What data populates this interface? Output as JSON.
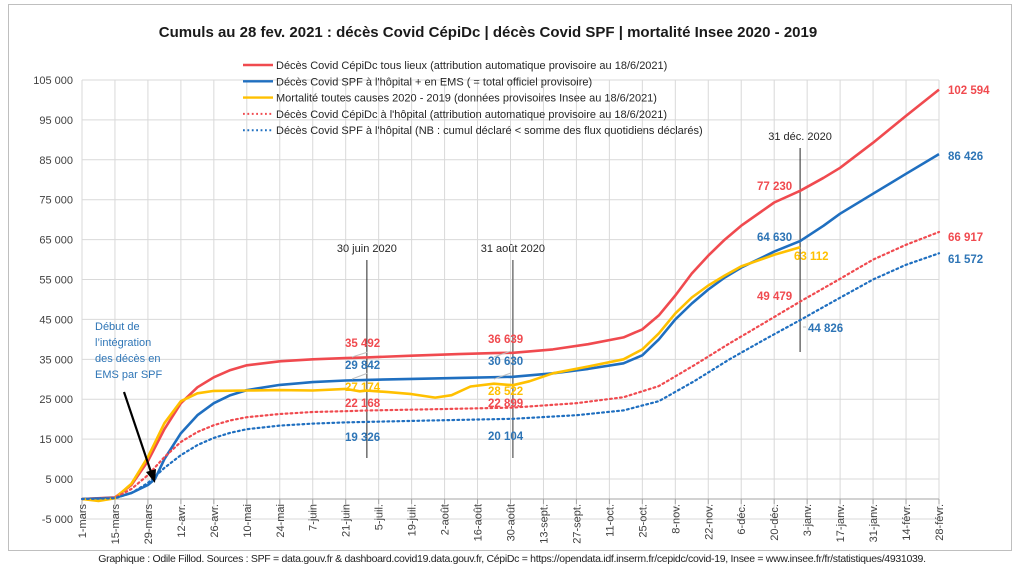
{
  "chart_data": {
    "type": "line",
    "title": "Cumuls au 28 fev. 2021 : décès Covid CépiDc | décès Covid SPF | mortalité Insee 2020 - 2019",
    "xlabel": "",
    "ylabel": "",
    "ylim": [
      -5000,
      105000
    ],
    "yticks": [
      -5000,
      5000,
      15000,
      25000,
      35000,
      45000,
      55000,
      65000,
      75000,
      85000,
      95000,
      105000
    ],
    "ytick_labels": [
      "-5 000",
      "5 000",
      "15 000",
      "25 000",
      "35 000",
      "45 000",
      "55 000",
      "65 000",
      "75 000",
      "85 000",
      "95 000",
      "105 000"
    ],
    "x_day_range": [
      0,
      364
    ],
    "x_tick_days": [
      0,
      14,
      28,
      42,
      56,
      70,
      84,
      98,
      112,
      126,
      140,
      154,
      168,
      182,
      196,
      210,
      224,
      238,
      252,
      266,
      280,
      294,
      308,
      322,
      336,
      350,
      364
    ],
    "x_tick_labels": [
      "1-mars",
      "15-mars",
      "29-mars",
      "12-avr.",
      "26-avr.",
      "10-mai",
      "24-mai",
      "7-juin",
      "21-juin",
      "5-juil.",
      "19-juil.",
      "2-août",
      "16-août",
      "30-août",
      "13-sept.",
      "27-sept.",
      "11-oct.",
      "25-oct.",
      "8-nov.",
      "22-nov.",
      "6-déc.",
      "20-déc.",
      "3-janv.",
      "17-janv.",
      "31-janv.",
      "14-févr.",
      "28-févr."
    ],
    "grid": true,
    "legend_position": "top-center",
    "series": [
      {
        "name": "Décès Covid CépiDc tous lieux (attribution automatique provisoire au 18/6/2021)",
        "color": "#f04a4f",
        "style": "solid",
        "x": [
          0,
          14,
          21,
          28,
          35,
          42,
          49,
          56,
          63,
          70,
          84,
          98,
          112,
          121,
          140,
          160,
          175,
          183,
          200,
          215,
          230,
          238,
          245,
          252,
          259,
          266,
          273,
          280,
          294,
          305,
          315,
          322,
          336,
          350,
          364
        ],
        "values": [
          0,
          400,
          3500,
          9500,
          17500,
          24000,
          28000,
          30500,
          32300,
          33500,
          34500,
          35000,
          35300,
          35492,
          35900,
          36300,
          36550,
          36639,
          37500,
          38800,
          40500,
          42500,
          46000,
          51000,
          56500,
          61000,
          65000,
          68500,
          74300,
          77230,
          80500,
          83000,
          89300,
          96000,
          102594
        ]
      },
      {
        "name": "Décès Covid SPF à l'hôpital + en EMS ( = total officiel provisoire)",
        "color": "#1f6fc0",
        "style": "solid",
        "x": [
          0,
          14,
          21,
          28,
          31,
          35,
          42,
          49,
          56,
          63,
          70,
          84,
          98,
          112,
          121,
          140,
          160,
          183,
          200,
          215,
          230,
          238,
          245,
          252,
          259,
          266,
          273,
          280,
          294,
          305,
          315,
          322,
          336,
          350,
          364
        ],
        "values": [
          0,
          300,
          1500,
          3500,
          5000,
          10000,
          16500,
          21000,
          24000,
          26000,
          27300,
          28600,
          29300,
          29700,
          29842,
          30100,
          30350,
          30630,
          31500,
          32600,
          34000,
          36000,
          40000,
          45000,
          49000,
          52500,
          55500,
          58000,
          62000,
          64630,
          68500,
          71500,
          76500,
          81500,
          86426
        ]
      },
      {
        "name": "Mortalité toutes causes 2020 - 2019 (données provisoires Insee au 18/6/2021)",
        "color": "#ffc000",
        "style": "solid",
        "x": [
          0,
          7,
          14,
          21,
          28,
          35,
          42,
          49,
          56,
          70,
          84,
          98,
          112,
          118,
          121,
          130,
          140,
          150,
          157,
          165,
          175,
          183,
          190,
          200,
          215,
          230,
          238,
          245,
          252,
          259,
          266,
          273,
          280,
          294,
          305
        ],
        "values": [
          0,
          -500,
          200,
          3800,
          10500,
          19000,
          24500,
          26500,
          27100,
          27200,
          27300,
          27200,
          27600,
          27000,
          27174,
          26800,
          26300,
          25400,
          26000,
          28200,
          28900,
          28522,
          29500,
          31500,
          33200,
          35000,
          37500,
          41500,
          46500,
          50500,
          53500,
          56000,
          58300,
          61200,
          63112
        ]
      },
      {
        "name": "Décès Covid CépiDc à l'hôpital (attribution automatique provisoire au 18/6/2021)",
        "color": "#f04a4f",
        "style": "dotted",
        "x": [
          0,
          14,
          21,
          28,
          35,
          42,
          49,
          56,
          63,
          70,
          84,
          98,
          112,
          121,
          150,
          183,
          210,
          230,
          245,
          260,
          275,
          290,
          305,
          320,
          336,
          350,
          364
        ],
        "values": [
          0,
          300,
          2500,
          6000,
          10500,
          14300,
          16800,
          18500,
          19700,
          20500,
          21300,
          21800,
          22000,
          22168,
          22500,
          22899,
          24000,
          25500,
          28300,
          33500,
          39000,
          44200,
          49479,
          54500,
          60000,
          63700,
          66917
        ]
      },
      {
        "name": "Décès Covid SPF à l'hôpital (NB : cumul déclaré < somme des flux quotidiens déclarés)",
        "color": "#1f6fc0",
        "style": "dotted",
        "x": [
          0,
          14,
          21,
          28,
          35,
          42,
          49,
          56,
          63,
          70,
          84,
          98,
          112,
          121,
          150,
          183,
          210,
          230,
          245,
          260,
          275,
          290,
          305,
          320,
          336,
          350,
          364
        ],
        "values": [
          0,
          200,
          1500,
          4000,
          7800,
          11000,
          13500,
          15300,
          16600,
          17500,
          18400,
          18900,
          19200,
          19326,
          19700,
          20104,
          21000,
          22200,
          24500,
          29500,
          35000,
          40000,
          44826,
          49800,
          55000,
          58700,
          61572
        ]
      }
    ],
    "annotations": {
      "date_markers": [
        {
          "label": "30 juin 2020",
          "day": 121
        },
        {
          "label": "31 août 2020",
          "day": 183
        },
        {
          "label": "31 déc. 2020",
          "day": 305
        }
      ],
      "value_labels": [
        {
          "text": "35 492",
          "series": 0,
          "day": 121
        },
        {
          "text": "29 842",
          "series": 1,
          "day": 121
        },
        {
          "text": "27 174",
          "series": 2,
          "day": 121
        },
        {
          "text": "22 168",
          "series": 3,
          "day": 121
        },
        {
          "text": "19 326",
          "series": 4,
          "day": 121
        },
        {
          "text": "36 639",
          "series": 0,
          "day": 183
        },
        {
          "text": "30 630",
          "series": 1,
          "day": 183
        },
        {
          "text": "28 522",
          "series": 2,
          "day": 183
        },
        {
          "text": "22 899",
          "series": 3,
          "day": 183
        },
        {
          "text": "20 104",
          "series": 4,
          "day": 183
        },
        {
          "text": "77 230",
          "series": 0,
          "day": 305
        },
        {
          "text": "64 630",
          "series": 1,
          "day": 305
        },
        {
          "text": "63 112",
          "series": 2,
          "day": 305
        },
        {
          "text": "49 479",
          "series": 3,
          "day": 305
        },
        {
          "text": "44 826",
          "series": 4,
          "day": 305
        },
        {
          "text": "102 594",
          "series": 0,
          "day": 364
        },
        {
          "text": "86 426",
          "series": 1,
          "day": 364
        },
        {
          "text": "66 917",
          "series": 3,
          "day": 364
        },
        {
          "text": "61 572",
          "series": 4,
          "day": 364
        }
      ],
      "ems_note": [
        "Début de",
        "l’intégration",
        "des décès en",
        "EMS par SPF"
      ],
      "ems_note_color": "#2e75b6"
    }
  },
  "footer": "Graphique : Odile Fillod. Sources : SPF = data.gouv.fr & dashboard.covid19.data.gouv.fr, CépiDc = https://opendata.idf.inserm.fr/cepidc/covid-19, Insee = www.insee.fr/fr/statistiques/4931039."
}
